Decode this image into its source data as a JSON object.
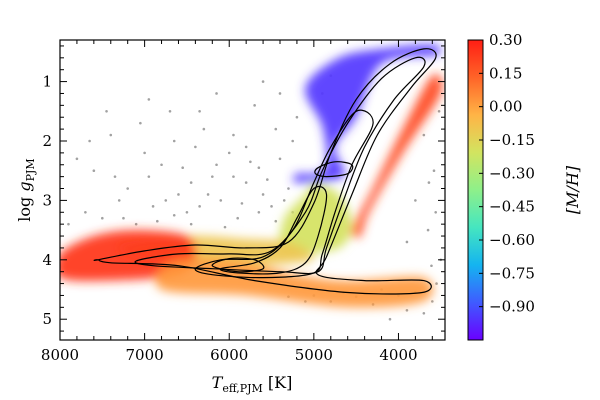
{
  "chart_data": {
    "type": "scatter",
    "title": "",
    "xlabel": "T_eff,PJM [K]",
    "ylabel": "log g_PJM",
    "xlabel_parts": {
      "main": "T",
      "sub": "eff,PJM",
      "unit": " [K]"
    },
    "ylabel_parts": {
      "main": "log ",
      "var": "g",
      "sub": "PJM"
    },
    "xlim": [
      8000,
      3450
    ],
    "ylim": [
      5.35,
      0.3
    ],
    "x_ticks": [
      8000,
      7000,
      6000,
      5000,
      4000
    ],
    "x_tick_labels": [
      "8000",
      "7000",
      "6000",
      "5000",
      "4000"
    ],
    "y_ticks": [
      1,
      2,
      3,
      4,
      5
    ],
    "y_tick_labels": [
      "1",
      "2",
      "3",
      "4",
      "5"
    ],
    "colorbar": {
      "label": "[M/H]",
      "range": [
        -1.05,
        0.3
      ],
      "ticks": [
        0.3,
        0.15,
        0.0,
        -0.15,
        -0.3,
        -0.45,
        -0.6,
        -0.75,
        -0.9
      ],
      "tick_labels": [
        "0.30",
        "0.15",
        "0.00",
        "−0.15",
        "−0.30",
        "−0.45",
        "−0.60",
        "−0.75",
        "−0.90"
      ],
      "colormap": [
        "#6a00ff",
        "#3f5bff",
        "#14b4f0",
        "#45e6c0",
        "#8ef08a",
        "#d2e460",
        "#ffb446",
        "#ff6428",
        "#ff1e14"
      ]
    },
    "density_regions": [
      {
        "name": "giant-branch-red-clump",
        "metallicity": -0.95,
        "points": [
          [
            5200,
            2.55
          ],
          [
            5000,
            2.55
          ],
          [
            4850,
            2.4
          ],
          [
            4900,
            1.75
          ],
          [
            5100,
            1.1
          ],
          [
            4700,
            0.6
          ],
          [
            4200,
            0.45
          ],
          [
            3600,
            0.38
          ],
          [
            3550,
            0.55
          ],
          [
            4200,
            0.7
          ],
          [
            4500,
            1.6
          ],
          [
            4750,
            2.1
          ],
          [
            4650,
            2.6
          ],
          [
            5200,
            2.7
          ]
        ]
      },
      {
        "name": "rgb-lower",
        "metallicity": -0.2,
        "points": [
          [
            5000,
            2.7
          ],
          [
            4700,
            2.9
          ],
          [
            4550,
            3.4
          ],
          [
            4700,
            3.8
          ],
          [
            5200,
            3.9
          ],
          [
            5400,
            3.85
          ],
          [
            5350,
            3.3
          ],
          [
            5100,
            2.9
          ]
        ]
      },
      {
        "name": "subgiant-branch",
        "metallicity": -0.1,
        "points": [
          [
            7300,
            3.75
          ],
          [
            6500,
            3.6
          ],
          [
            5800,
            3.65
          ],
          [
            5300,
            3.7
          ],
          [
            5000,
            3.95
          ],
          [
            5200,
            4.05
          ],
          [
            6000,
            4.1
          ],
          [
            7000,
            4.0
          ]
        ]
      },
      {
        "name": "turnoff-hot",
        "metallicity": 0.25,
        "points": [
          [
            8000,
            3.9
          ],
          [
            7600,
            3.6
          ],
          [
            7100,
            3.5
          ],
          [
            6500,
            3.6
          ],
          [
            6400,
            3.95
          ],
          [
            6600,
            4.25
          ],
          [
            7400,
            4.35
          ],
          [
            8000,
            4.3
          ]
        ]
      },
      {
        "name": "main-sequence",
        "metallicity": 0.02,
        "points": [
          [
            6700,
            4.05
          ],
          [
            6000,
            4.0
          ],
          [
            5200,
            4.25
          ],
          [
            4600,
            4.35
          ],
          [
            3700,
            4.3
          ],
          [
            3700,
            4.7
          ],
          [
            4600,
            4.8
          ],
          [
            5800,
            4.6
          ],
          [
            6800,
            4.5
          ]
        ]
      },
      {
        "name": "metal-rich-rgb-edge",
        "metallicity": 0.2,
        "points": [
          [
            4550,
            3.5
          ],
          [
            4300,
            2.8
          ],
          [
            3950,
            1.8
          ],
          [
            3600,
            0.9
          ],
          [
            3500,
            1.2
          ],
          [
            3950,
            2.2
          ],
          [
            4350,
            3.2
          ],
          [
            4450,
            3.6
          ]
        ]
      }
    ],
    "contours": [
      {
        "level": 1,
        "points": [
          [
            7550,
            4.0
          ],
          [
            7000,
            3.85
          ],
          [
            6400,
            3.75
          ],
          [
            5800,
            3.8
          ],
          [
            5300,
            3.7
          ],
          [
            5000,
            3.05
          ],
          [
            4800,
            2.2
          ],
          [
            4500,
            1.3
          ],
          [
            4100,
            0.7
          ],
          [
            3700,
            0.45
          ],
          [
            3560,
            0.6
          ],
          [
            3850,
            1.1
          ],
          [
            4250,
            1.9
          ],
          [
            4550,
            2.9
          ],
          [
            4850,
            3.95
          ],
          [
            4950,
            4.25
          ],
          [
            4400,
            4.35
          ],
          [
            3700,
            4.35
          ],
          [
            3720,
            4.55
          ],
          [
            4600,
            4.55
          ],
          [
            5700,
            4.35
          ],
          [
            6600,
            4.1
          ],
          [
            7400,
            4.05
          ],
          [
            7550,
            4.0
          ]
        ]
      },
      {
        "level": 2,
        "points": [
          [
            7100,
            4.02
          ],
          [
            6600,
            3.9
          ],
          [
            6000,
            3.9
          ],
          [
            5500,
            3.85
          ],
          [
            5100,
            3.2
          ],
          [
            4900,
            2.5
          ],
          [
            4600,
            1.7
          ],
          [
            4200,
            0.95
          ],
          [
            3800,
            0.6
          ],
          [
            3700,
            0.75
          ],
          [
            4050,
            1.3
          ],
          [
            4400,
            2.1
          ],
          [
            4650,
            3.0
          ],
          [
            4850,
            3.8
          ],
          [
            4950,
            4.2
          ],
          [
            5400,
            4.2
          ],
          [
            6200,
            4.15
          ],
          [
            6900,
            4.1
          ]
        ]
      },
      {
        "level": 3,
        "points": [
          [
            6400,
            4.15
          ],
          [
            6100,
            4.0
          ],
          [
            5600,
            3.95
          ],
          [
            5250,
            3.5
          ],
          [
            5000,
            2.7
          ],
          [
            4800,
            2.1
          ],
          [
            4500,
            1.5
          ],
          [
            4300,
            1.7
          ],
          [
            4550,
            2.4
          ],
          [
            4750,
            3.2
          ],
          [
            4900,
            3.9
          ],
          [
            5000,
            4.22
          ],
          [
            5600,
            4.3
          ],
          [
            6200,
            4.25
          ]
        ]
      },
      {
        "level": 4,
        "points": [
          [
            6100,
            4.15
          ],
          [
            5700,
            4.05
          ],
          [
            5400,
            3.8
          ],
          [
            5200,
            3.3
          ],
          [
            5000,
            2.8
          ],
          [
            4850,
            2.9
          ],
          [
            4950,
            3.6
          ],
          [
            5100,
            4.05
          ],
          [
            5400,
            4.22
          ],
          [
            5900,
            4.22
          ]
        ]
      },
      {
        "level": 5,
        "points": [
          [
            4950,
            2.45
          ],
          [
            4750,
            2.35
          ],
          [
            4550,
            2.4
          ],
          [
            4600,
            2.55
          ],
          [
            4850,
            2.6
          ],
          [
            4980,
            2.55
          ]
        ]
      },
      {
        "level": 6,
        "points": [
          [
            6200,
            4.1
          ],
          [
            6000,
            3.98
          ],
          [
            5700,
            4.0
          ],
          [
            5600,
            4.15
          ],
          [
            5900,
            4.2
          ]
        ]
      }
    ],
    "scatter_points": [
      [
        7800,
        2.3
      ],
      [
        7600,
        2.5
      ],
      [
        7400,
        1.9
      ],
      [
        7200,
        2.8
      ],
      [
        7000,
        2.2
      ],
      [
        6900,
        3.1
      ],
      [
        6800,
        2.4
      ],
      [
        6700,
        1.5
      ],
      [
        6600,
        2.9
      ],
      [
        6500,
        3.2
      ],
      [
        6400,
        2.1
      ],
      [
        6300,
        1.8
      ],
      [
        6200,
        2.6
      ],
      [
        6100,
        3.0
      ],
      [
        6000,
        2.2
      ],
      [
        5900,
        3.3
      ],
      [
        5800,
        2.7
      ],
      [
        5700,
        1.4
      ],
      [
        5600,
        2.9
      ],
      [
        5500,
        3.1
      ],
      [
        5400,
        2.3
      ],
      [
        5300,
        2.8
      ],
      [
        7900,
        3.4
      ],
      [
        7700,
        3.2
      ],
      [
        7500,
        3.3
      ],
      [
        7300,
        3.0
      ],
      [
        7100,
        3.4
      ],
      [
        6950,
        2.6
      ],
      [
        6850,
        3.35
      ],
      [
        6750,
        3.0
      ],
      [
        6550,
        2.45
      ],
      [
        6450,
        3.4
      ],
      [
        6350,
        3.1
      ],
      [
        6250,
        2.9
      ],
      [
        6150,
        2.4
      ],
      [
        6050,
        3.45
      ],
      [
        5950,
        2.6
      ],
      [
        5850,
        3.05
      ],
      [
        5750,
        2.35
      ],
      [
        5650,
        3.2
      ],
      [
        5550,
        2.65
      ],
      [
        5450,
        3.35
      ],
      [
        5350,
        3.0
      ],
      [
        5250,
        3.2
      ],
      [
        7650,
        2.0
      ],
      [
        7350,
        2.6
      ],
      [
        7050,
        1.7
      ],
      [
        6650,
        2.0
      ],
      [
        6350,
        1.5
      ],
      [
        5950,
        1.9
      ],
      [
        5800,
        2.1
      ],
      [
        5450,
        1.8
      ],
      [
        5250,
        2.0
      ],
      [
        7450,
        1.5
      ],
      [
        6950,
        1.3
      ],
      [
        6650,
        3.25
      ],
      [
        6150,
        1.2
      ],
      [
        5650,
        2.45
      ],
      [
        7250,
        3.3
      ],
      [
        6450,
        2.7
      ],
      [
        5000,
        4.6
      ],
      [
        4800,
        4.7
      ],
      [
        4500,
        4.62
      ],
      [
        4300,
        4.75
      ],
      [
        4000,
        4.6
      ],
      [
        3800,
        4.55
      ],
      [
        3600,
        4.7
      ],
      [
        3900,
        4.85
      ],
      [
        4200,
        4.5
      ],
      [
        4650,
        4.55
      ],
      [
        5100,
        4.7
      ],
      [
        5300,
        4.62
      ],
      [
        4100,
        5.0
      ],
      [
        3700,
        4.9
      ],
      [
        3550,
        4.4
      ],
      [
        3500,
        4.0
      ],
      [
        3650,
        3.5
      ],
      [
        3800,
        3.0
      ],
      [
        3580,
        2.5
      ],
      [
        3700,
        1.9
      ],
      [
        3520,
        1.5
      ],
      [
        3640,
        2.7
      ],
      [
        3560,
        3.2
      ],
      [
        3900,
        3.7
      ],
      [
        3610,
        4.1
      ],
      [
        4900,
        1.2
      ],
      [
        5200,
        1.6
      ],
      [
        5400,
        1.2
      ],
      [
        5600,
        1.0
      ],
      [
        4800,
        0.9
      ]
    ]
  }
}
